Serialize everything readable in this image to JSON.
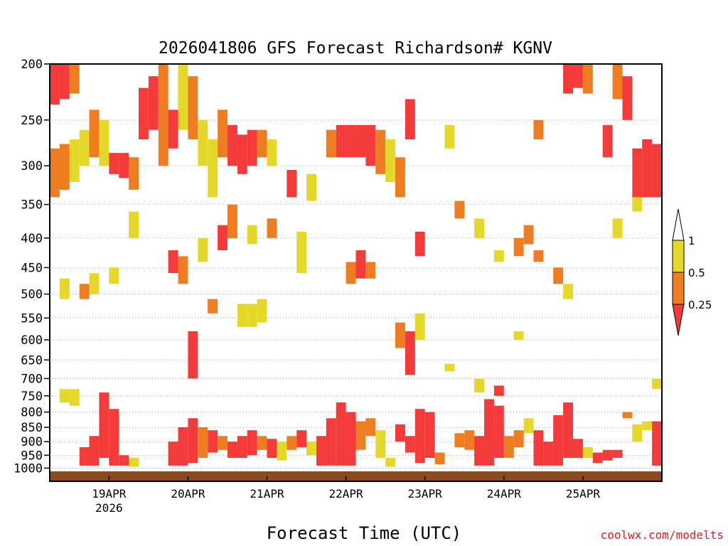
{
  "chart_data": {
    "type": "heatmap",
    "title": "2026041806 GFS Forecast Richardson# KGNV",
    "xlabel": "Forecast Time (UTC)",
    "ylabel": "",
    "credit": "coolwx.com/modelts",
    "x_start_hour": 6,
    "x_step_hours": 3,
    "x_step_count": 62,
    "y_levels": [
      1000,
      950,
      900,
      850,
      800,
      750,
      700,
      650,
      600,
      550,
      500,
      450,
      400,
      350,
      300,
      250,
      200
    ],
    "y_tick_labels": [
      "1000",
      "950",
      "900",
      "850",
      "800",
      "750",
      "700",
      "650",
      "600",
      "550",
      "500",
      "450",
      "400",
      "350",
      "300",
      "250",
      "200"
    ],
    "x_ticks": [
      {
        "label": "19APR",
        "sublabel": "2026",
        "hour": 24
      },
      {
        "label": "20APR",
        "sublabel": "",
        "hour": 48
      },
      {
        "label": "21APR",
        "sublabel": "",
        "hour": 72
      },
      {
        "label": "22APR",
        "sublabel": "",
        "hour": 96
      },
      {
        "label": "23APR",
        "sublabel": "",
        "hour": 120
      },
      {
        "label": "24APR",
        "sublabel": "",
        "hour": 144
      },
      {
        "label": "25APR",
        "sublabel": "",
        "hour": 168
      }
    ],
    "legend": {
      "placement": "right",
      "labels": [
        "1",
        "0.5",
        "0.25"
      ],
      "colors": {
        "above_1": "#ffffff",
        "0.5-1": "#e6d82a",
        "0.25-0.5": "#ee7d22",
        "below_0.25": "#f43b3b"
      }
    },
    "ground_color": "#8a4a1e",
    "grid": "dotted horizontal at pressure levels",
    "colors": {
      "yellow": "#e6d82a",
      "orange": "#ee7d22",
      "red": "#f43b3b"
    },
    "cells": [
      {
        "hour": 6,
        "p0": 200,
        "p1": 235,
        "color": "red"
      },
      {
        "hour": 9,
        "p0": 200,
        "p1": 230,
        "color": "red"
      },
      {
        "hour": 12,
        "p0": 200,
        "p1": 225,
        "color": "orange"
      },
      {
        "hour": 6,
        "p0": 280,
        "p1": 340,
        "color": "orange"
      },
      {
        "hour": 9,
        "p0": 275,
        "p1": 330,
        "color": "orange"
      },
      {
        "hour": 12,
        "p0": 270,
        "p1": 320,
        "color": "yellow"
      },
      {
        "hour": 15,
        "p0": 260,
        "p1": 300,
        "color": "yellow"
      },
      {
        "hour": 18,
        "p0": 240,
        "p1": 290,
        "color": "orange"
      },
      {
        "hour": 21,
        "p0": 250,
        "p1": 300,
        "color": "yellow"
      },
      {
        "hour": 24,
        "p0": 285,
        "p1": 310,
        "color": "red"
      },
      {
        "hour": 27,
        "p0": 285,
        "p1": 315,
        "color": "red"
      },
      {
        "hour": 30,
        "p0": 290,
        "p1": 330,
        "color": "orange"
      },
      {
        "hour": 33,
        "p0": 220,
        "p1": 270,
        "color": "red"
      },
      {
        "hour": 36,
        "p0": 210,
        "p1": 260,
        "color": "red"
      },
      {
        "hour": 39,
        "p0": 200,
        "p1": 300,
        "color": "orange"
      },
      {
        "hour": 42,
        "p0": 240,
        "p1": 280,
        "color": "red"
      },
      {
        "hour": 45,
        "p0": 200,
        "p1": 260,
        "color": "yellow"
      },
      {
        "hour": 48,
        "p0": 210,
        "p1": 270,
        "color": "orange"
      },
      {
        "hour": 51,
        "p0": 250,
        "p1": 300,
        "color": "yellow"
      },
      {
        "hour": 54,
        "p0": 270,
        "p1": 340,
        "color": "yellow"
      },
      {
        "hour": 57,
        "p0": 240,
        "p1": 290,
        "color": "orange"
      },
      {
        "hour": 60,
        "p0": 255,
        "p1": 300,
        "color": "red"
      },
      {
        "hour": 63,
        "p0": 265,
        "p1": 310,
        "color": "red"
      },
      {
        "hour": 66,
        "p0": 260,
        "p1": 300,
        "color": "red"
      },
      {
        "hour": 69,
        "p0": 260,
        "p1": 290,
        "color": "orange"
      },
      {
        "hour": 72,
        "p0": 270,
        "p1": 300,
        "color": "yellow"
      },
      {
        "hour": 78,
        "p0": 305,
        "p1": 340,
        "color": "red"
      },
      {
        "hour": 84,
        "p0": 310,
        "p1": 345,
        "color": "yellow"
      },
      {
        "hour": 90,
        "p0": 260,
        "p1": 290,
        "color": "orange"
      },
      {
        "hour": 93,
        "p0": 255,
        "p1": 290,
        "color": "red"
      },
      {
        "hour": 96,
        "p0": 255,
        "p1": 290,
        "color": "red"
      },
      {
        "hour": 99,
        "p0": 255,
        "p1": 290,
        "color": "red"
      },
      {
        "hour": 102,
        "p0": 255,
        "p1": 300,
        "color": "red"
      },
      {
        "hour": 105,
        "p0": 260,
        "p1": 310,
        "color": "orange"
      },
      {
        "hour": 108,
        "p0": 270,
        "p1": 320,
        "color": "yellow"
      },
      {
        "hour": 111,
        "p0": 290,
        "p1": 340,
        "color": "orange"
      },
      {
        "hour": 114,
        "p0": 230,
        "p1": 270,
        "color": "red"
      },
      {
        "hour": 126,
        "p0": 255,
        "p1": 280,
        "color": "yellow"
      },
      {
        "hour": 153,
        "p0": 250,
        "p1": 270,
        "color": "orange"
      },
      {
        "hour": 168,
        "p0": 200,
        "p1": 225,
        "color": "orange"
      },
      {
        "hour": 162,
        "p0": 200,
        "p1": 225,
        "color": "red"
      },
      {
        "hour": 165,
        "p0": 200,
        "p1": 220,
        "color": "red"
      },
      {
        "hour": 174,
        "p0": 255,
        "p1": 290,
        "color": "red"
      },
      {
        "hour": 177,
        "p0": 200,
        "p1": 230,
        "color": "orange"
      },
      {
        "hour": 180,
        "p0": 210,
        "p1": 250,
        "color": "red"
      },
      {
        "hour": 183,
        "p0": 280,
        "p1": 340,
        "color": "red"
      },
      {
        "hour": 186,
        "p0": 270,
        "p1": 340,
        "color": "red"
      },
      {
        "hour": 189,
        "p0": 275,
        "p1": 340,
        "color": "red"
      },
      {
        "hour": 30,
        "p0": 360,
        "p1": 400,
        "color": "yellow"
      },
      {
        "hour": 42,
        "p0": 420,
        "p1": 460,
        "color": "red"
      },
      {
        "hour": 45,
        "p0": 430,
        "p1": 480,
        "color": "orange"
      },
      {
        "hour": 51,
        "p0": 400,
        "p1": 440,
        "color": "yellow"
      },
      {
        "hour": 57,
        "p0": 380,
        "p1": 420,
        "color": "red"
      },
      {
        "hour": 60,
        "p0": 350,
        "p1": 400,
        "color": "orange"
      },
      {
        "hour": 66,
        "p0": 380,
        "p1": 410,
        "color": "yellow"
      },
      {
        "hour": 72,
        "p0": 370,
        "p1": 400,
        "color": "orange"
      },
      {
        "hour": 81,
        "p0": 390,
        "p1": 460,
        "color": "yellow"
      },
      {
        "hour": 96,
        "p0": 440,
        "p1": 480,
        "color": "orange"
      },
      {
        "hour": 99,
        "p0": 420,
        "p1": 470,
        "color": "red"
      },
      {
        "hour": 102,
        "p0": 440,
        "p1": 470,
        "color": "orange"
      },
      {
        "hour": 117,
        "p0": 390,
        "p1": 430,
        "color": "red"
      },
      {
        "hour": 129,
        "p0": 345,
        "p1": 370,
        "color": "orange"
      },
      {
        "hour": 135,
        "p0": 370,
        "p1": 400,
        "color": "yellow"
      },
      {
        "hour": 141,
        "p0": 420,
        "p1": 440,
        "color": "yellow"
      },
      {
        "hour": 147,
        "p0": 400,
        "p1": 430,
        "color": "orange"
      },
      {
        "hour": 150,
        "p0": 380,
        "p1": 410,
        "color": "orange"
      },
      {
        "hour": 153,
        "p0": 420,
        "p1": 440,
        "color": "orange"
      },
      {
        "hour": 159,
        "p0": 450,
        "p1": 480,
        "color": "orange"
      },
      {
        "hour": 162,
        "p0": 480,
        "p1": 510,
        "color": "yellow"
      },
      {
        "hour": 177,
        "p0": 370,
        "p1": 400,
        "color": "yellow"
      },
      {
        "hour": 183,
        "p0": 340,
        "p1": 360,
        "color": "yellow"
      },
      {
        "hour": 9,
        "p0": 470,
        "p1": 510,
        "color": "yellow"
      },
      {
        "hour": 15,
        "p0": 480,
        "p1": 510,
        "color": "orange"
      },
      {
        "hour": 18,
        "p0": 460,
        "p1": 500,
        "color": "yellow"
      },
      {
        "hour": 24,
        "p0": 450,
        "p1": 480,
        "color": "yellow"
      },
      {
        "hour": 9,
        "p0": 730,
        "p1": 770,
        "color": "yellow"
      },
      {
        "hour": 12,
        "p0": 730,
        "p1": 780,
        "color": "yellow"
      },
      {
        "hour": 63,
        "p0": 520,
        "p1": 570,
        "color": "yellow"
      },
      {
        "hour": 66,
        "p0": 520,
        "p1": 570,
        "color": "yellow"
      },
      {
        "hour": 69,
        "p0": 510,
        "p1": 560,
        "color": "yellow"
      },
      {
        "hour": 54,
        "p0": 510,
        "p1": 540,
        "color": "orange"
      },
      {
        "hour": 48,
        "p0": 580,
        "p1": 700,
        "color": "red"
      },
      {
        "hour": 111,
        "p0": 560,
        "p1": 620,
        "color": "orange"
      },
      {
        "hour": 114,
        "p0": 580,
        "p1": 690,
        "color": "red"
      },
      {
        "hour": 117,
        "p0": 540,
        "p1": 600,
        "color": "yellow"
      },
      {
        "hour": 147,
        "p0": 580,
        "p1": 600,
        "color": "yellow"
      },
      {
        "hour": 126,
        "p0": 660,
        "p1": 680,
        "color": "yellow"
      },
      {
        "hour": 135,
        "p0": 700,
        "p1": 740,
        "color": "yellow"
      },
      {
        "hour": 141,
        "p0": 720,
        "p1": 750,
        "color": "red"
      },
      {
        "hour": 189,
        "p0": 700,
        "p1": 730,
        "color": "yellow"
      },
      {
        "hour": 21,
        "p0": 740,
        "p1": 960,
        "color": "red"
      },
      {
        "hour": 24,
        "p0": 790,
        "p1": 990,
        "color": "red"
      },
      {
        "hour": 18,
        "p0": 880,
        "p1": 990,
        "color": "red"
      },
      {
        "hour": 15,
        "p0": 920,
        "p1": 990,
        "color": "red"
      },
      {
        "hour": 27,
        "p0": 950,
        "p1": 990,
        "color": "red"
      },
      {
        "hour": 30,
        "p0": 960,
        "p1": 995,
        "color": "yellow"
      },
      {
        "hour": 42,
        "p0": 900,
        "p1": 990,
        "color": "red"
      },
      {
        "hour": 45,
        "p0": 850,
        "p1": 990,
        "color": "red"
      },
      {
        "hour": 48,
        "p0": 820,
        "p1": 980,
        "color": "red"
      },
      {
        "hour": 51,
        "p0": 850,
        "p1": 960,
        "color": "orange"
      },
      {
        "hour": 54,
        "p0": 860,
        "p1": 940,
        "color": "red"
      },
      {
        "hour": 57,
        "p0": 880,
        "p1": 930,
        "color": "orange"
      },
      {
        "hour": 60,
        "p0": 900,
        "p1": 960,
        "color": "red"
      },
      {
        "hour": 63,
        "p0": 880,
        "p1": 960,
        "color": "red"
      },
      {
        "hour": 66,
        "p0": 860,
        "p1": 950,
        "color": "red"
      },
      {
        "hour": 69,
        "p0": 880,
        "p1": 930,
        "color": "orange"
      },
      {
        "hour": 72,
        "p0": 890,
        "p1": 960,
        "color": "red"
      },
      {
        "hour": 75,
        "p0": 900,
        "p1": 970,
        "color": "yellow"
      },
      {
        "hour": 78,
        "p0": 880,
        "p1": 930,
        "color": "orange"
      },
      {
        "hour": 81,
        "p0": 860,
        "p1": 920,
        "color": "red"
      },
      {
        "hour": 84,
        "p0": 900,
        "p1": 950,
        "color": "yellow"
      },
      {
        "hour": 87,
        "p0": 880,
        "p1": 990,
        "color": "red"
      },
      {
        "hour": 90,
        "p0": 820,
        "p1": 990,
        "color": "red"
      },
      {
        "hour": 93,
        "p0": 770,
        "p1": 990,
        "color": "red"
      },
      {
        "hour": 96,
        "p0": 800,
        "p1": 990,
        "color": "red"
      },
      {
        "hour": 99,
        "p0": 830,
        "p1": 930,
        "color": "orange"
      },
      {
        "hour": 102,
        "p0": 820,
        "p1": 880,
        "color": "orange"
      },
      {
        "hour": 105,
        "p0": 860,
        "p1": 960,
        "color": "yellow"
      },
      {
        "hour": 108,
        "p0": 960,
        "p1": 995,
        "color": "yellow"
      },
      {
        "hour": 111,
        "p0": 840,
        "p1": 900,
        "color": "red"
      },
      {
        "hour": 114,
        "p0": 880,
        "p1": 940,
        "color": "red"
      },
      {
        "hour": 117,
        "p0": 790,
        "p1": 980,
        "color": "red"
      },
      {
        "hour": 120,
        "p0": 800,
        "p1": 960,
        "color": "red"
      },
      {
        "hour": 123,
        "p0": 940,
        "p1": 985,
        "color": "orange"
      },
      {
        "hour": 129,
        "p0": 870,
        "p1": 920,
        "color": "orange"
      },
      {
        "hour": 132,
        "p0": 860,
        "p1": 930,
        "color": "orange"
      },
      {
        "hour": 135,
        "p0": 880,
        "p1": 990,
        "color": "red"
      },
      {
        "hour": 138,
        "p0": 760,
        "p1": 990,
        "color": "red"
      },
      {
        "hour": 141,
        "p0": 780,
        "p1": 960,
        "color": "red"
      },
      {
        "hour": 144,
        "p0": 880,
        "p1": 960,
        "color": "orange"
      },
      {
        "hour": 147,
        "p0": 860,
        "p1": 920,
        "color": "orange"
      },
      {
        "hour": 150,
        "p0": 820,
        "p1": 870,
        "color": "yellow"
      },
      {
        "hour": 153,
        "p0": 860,
        "p1": 990,
        "color": "red"
      },
      {
        "hour": 156,
        "p0": 900,
        "p1": 990,
        "color": "red"
      },
      {
        "hour": 159,
        "p0": 810,
        "p1": 990,
        "color": "red"
      },
      {
        "hour": 162,
        "p0": 770,
        "p1": 960,
        "color": "red"
      },
      {
        "hour": 165,
        "p0": 890,
        "p1": 960,
        "color": "red"
      },
      {
        "hour": 168,
        "p0": 920,
        "p1": 960,
        "color": "yellow"
      },
      {
        "hour": 171,
        "p0": 940,
        "p1": 980,
        "color": "red"
      },
      {
        "hour": 174,
        "p0": 930,
        "p1": 970,
        "color": "red"
      },
      {
        "hour": 177,
        "p0": 930,
        "p1": 960,
        "color": "red"
      },
      {
        "hour": 180,
        "p0": 800,
        "p1": 820,
        "color": "orange"
      },
      {
        "hour": 183,
        "p0": 840,
        "p1": 900,
        "color": "yellow"
      },
      {
        "hour": 186,
        "p0": 830,
        "p1": 860,
        "color": "yellow"
      },
      {
        "hour": 189,
        "p0": 830,
        "p1": 990,
        "color": "red"
      }
    ]
  }
}
